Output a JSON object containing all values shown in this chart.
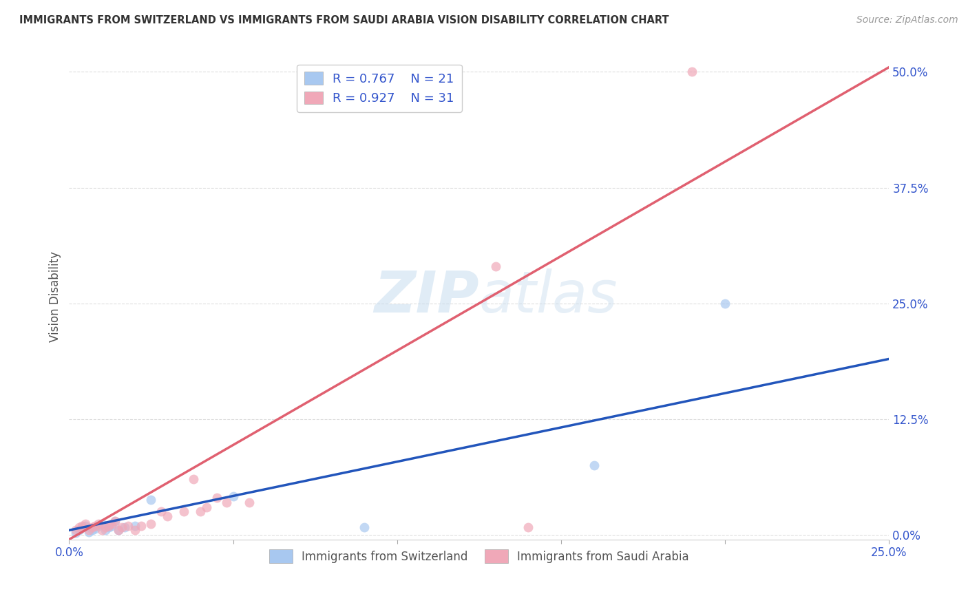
{
  "title": "IMMIGRANTS FROM SWITZERLAND VS IMMIGRANTS FROM SAUDI ARABIA VISION DISABILITY CORRELATION CHART",
  "source": "Source: ZipAtlas.com",
  "ylabel": "Vision Disability",
  "xlim": [
    0.0,
    0.25
  ],
  "ylim": [
    -0.005,
    0.52
  ],
  "yticks": [
    0.0,
    0.125,
    0.25,
    0.375,
    0.5
  ],
  "ytick_labels": [
    "0.0%",
    "12.5%",
    "25.0%",
    "37.5%",
    "50.0%"
  ],
  "xticks": [
    0.0,
    0.05,
    0.1,
    0.15,
    0.2,
    0.25
  ],
  "xtick_labels_show": [
    "0.0%",
    "",
    "",
    "",
    "",
    "25.0%"
  ],
  "swiss_R": 0.767,
  "swiss_N": 21,
  "saudi_R": 0.927,
  "saudi_N": 31,
  "swiss_color": "#A8C8F0",
  "saudi_color": "#F0A8B8",
  "swiss_line_color": "#2255BB",
  "saudi_line_color": "#E06070",
  "swiss_scatter_x": [
    0.002,
    0.003,
    0.004,
    0.005,
    0.006,
    0.007,
    0.008,
    0.009,
    0.01,
    0.011,
    0.012,
    0.013,
    0.014,
    0.015,
    0.017,
    0.02,
    0.025,
    0.05,
    0.09,
    0.2,
    0.16
  ],
  "swiss_scatter_y": [
    0.002,
    0.005,
    0.008,
    0.01,
    0.003,
    0.005,
    0.007,
    0.01,
    0.012,
    0.005,
    0.008,
    0.01,
    0.015,
    0.005,
    0.008,
    0.01,
    0.038,
    0.042,
    0.008,
    0.25,
    0.075
  ],
  "saudi_scatter_x": [
    0.002,
    0.003,
    0.004,
    0.005,
    0.006,
    0.007,
    0.008,
    0.009,
    0.01,
    0.011,
    0.012,
    0.013,
    0.014,
    0.015,
    0.016,
    0.018,
    0.02,
    0.022,
    0.025,
    0.028,
    0.03,
    0.035,
    0.038,
    0.04,
    0.042,
    0.045,
    0.048,
    0.055,
    0.13,
    0.14,
    0.19
  ],
  "saudi_scatter_y": [
    0.005,
    0.008,
    0.01,
    0.012,
    0.005,
    0.008,
    0.01,
    0.012,
    0.005,
    0.008,
    0.01,
    0.012,
    0.015,
    0.005,
    0.008,
    0.01,
    0.005,
    0.01,
    0.012,
    0.025,
    0.02,
    0.025,
    0.06,
    0.025,
    0.03,
    0.04,
    0.035,
    0.035,
    0.29,
    0.008,
    0.5
  ],
  "swiss_line_x": [
    0.0,
    0.25
  ],
  "swiss_line_y": [
    0.005,
    0.19
  ],
  "saudi_line_x": [
    0.0,
    0.25
  ],
  "saudi_line_y": [
    -0.005,
    0.505
  ],
  "watermark_line1": "ZIP",
  "watermark_line2": "atlas",
  "watermark": "ZIPatlas",
  "background_color": "#FFFFFF",
  "grid_color": "#DDDDDD",
  "title_color": "#333333",
  "source_color": "#999999",
  "tick_label_color": "#3355CC",
  "ylabel_color": "#555555"
}
